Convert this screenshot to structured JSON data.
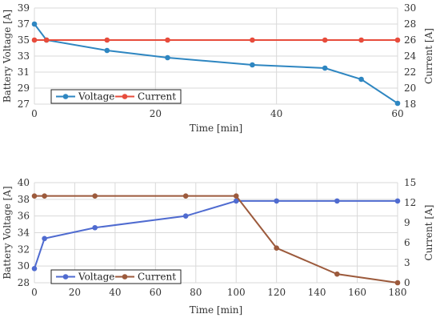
{
  "colors": {
    "voltage_top": "#2E86C1",
    "current_top": "#E74C3C",
    "voltage_bottom": "#4F6BD0",
    "current_bottom": "#9C5A3C",
    "grid": "#D9D9D9"
  },
  "chart_data": [
    {
      "type": "line",
      "xlabel": "Time [min]",
      "ylabel_left": "Battery Voltage [A]",
      "ylabel_right": "Current [A]",
      "xlim": [
        0,
        60
      ],
      "xticks": [
        0,
        20,
        40,
        60
      ],
      "ylim_left": [
        27,
        39
      ],
      "yticks_left": [
        27,
        29,
        31,
        33,
        35,
        37,
        39
      ],
      "ylim_right": [
        18,
        30
      ],
      "yticks_right": [
        18,
        20,
        22,
        24,
        26,
        28,
        30
      ],
      "grid": true,
      "legend_position": "bottom-left",
      "series": [
        {
          "name": "Voltage",
          "axis": "left",
          "x": [
            0,
            2,
            12,
            22,
            36,
            48,
            54,
            60
          ],
          "values": [
            37.0,
            35.0,
            33.7,
            32.8,
            31.9,
            31.5,
            30.1,
            27.1
          ]
        },
        {
          "name": "Current",
          "axis": "right",
          "x": [
            0,
            2,
            12,
            22,
            36,
            48,
            54,
            60
          ],
          "values": [
            26,
            26,
            26,
            26,
            26,
            26,
            26,
            26
          ]
        }
      ]
    },
    {
      "type": "line",
      "xlabel": "Time [min]",
      "ylabel_left": "Battery Voltage [A]",
      "ylabel_right": "Current [A]",
      "xlim": [
        0,
        180
      ],
      "xticks": [
        0,
        20,
        40,
        60,
        80,
        100,
        120,
        140,
        160,
        180
      ],
      "ylim_left": [
        28,
        40
      ],
      "yticks_left": [
        28,
        30,
        32,
        34,
        36,
        38,
        40
      ],
      "ylim_right": [
        0,
        15
      ],
      "yticks_right": [
        0,
        3,
        6,
        9,
        12,
        15
      ],
      "grid": true,
      "legend_position": "bottom-left",
      "series": [
        {
          "name": "Voltage",
          "axis": "left",
          "x": [
            0,
            5,
            30,
            75,
            100,
            120,
            150,
            180
          ],
          "values": [
            29.7,
            33.3,
            34.6,
            36.0,
            37.8,
            37.8,
            37.8,
            37.8
          ]
        },
        {
          "name": "Current",
          "axis": "right",
          "x": [
            0,
            5,
            30,
            75,
            100,
            120,
            150,
            180
          ],
          "values": [
            13,
            13,
            13,
            13,
            13,
            5.2,
            1.3,
            0
          ]
        }
      ]
    }
  ]
}
